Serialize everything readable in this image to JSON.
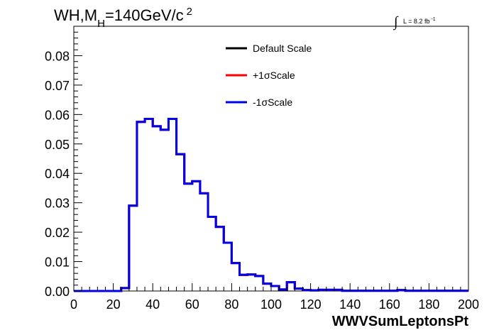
{
  "chart_data": {
    "type": "line",
    "title_parts": {
      "main": "WH,M",
      "sub": "H",
      "rest": "=140GeV/c",
      "sup": "2"
    },
    "luminosity": {
      "integral": "∫",
      "text": "L = 8.2 fb",
      "sup": "-1"
    },
    "xlabel": "WWVSumLeptonsPt",
    "ylabel": "",
    "xlim": [
      0,
      200
    ],
    "ylim": [
      0,
      0.09
    ],
    "xticks": [
      0,
      20,
      40,
      60,
      80,
      100,
      120,
      140,
      160,
      180,
      200
    ],
    "xtick_labels": [
      "0",
      "20",
      "40",
      "60",
      "80",
      "100",
      "120",
      "140",
      "160",
      "180",
      "200"
    ],
    "yticks": [
      0,
      0.01,
      0.02,
      0.03,
      0.04,
      0.05,
      0.06,
      0.07,
      0.08
    ],
    "ytick_labels": [
      "0.00",
      "0.01",
      "0.02",
      "0.03",
      "0.04",
      "0.05",
      "0.06",
      "0.07",
      "0.08"
    ],
    "grid": false,
    "legend_position": "top-center",
    "bin_width": 4,
    "bin_edges_start": 0,
    "series": [
      {
        "name": "Default Scale",
        "color": "#000000",
        "values": [
          0,
          0,
          0,
          0,
          0,
          0,
          0.001,
          0.029,
          0.0575,
          0.0585,
          0.056,
          0.0548,
          0.0585,
          0.0465,
          0.0365,
          0.0373,
          0.0332,
          0.0252,
          0.0218,
          0.0164,
          0.0095,
          0.0055,
          0.0056,
          0.0051,
          0.0025,
          0.0017,
          0.0005,
          0.003,
          0.0008,
          0.0003,
          0.0002,
          0.0004,
          0.0004,
          0.0004,
          0.0001,
          0.0001,
          0.0001,
          0.0001,
          0.0001,
          0.0001,
          0.0001,
          0.0003,
          0.0001,
          0.0001,
          0.0001,
          0.0001,
          0.0001,
          0.0001,
          0.0001,
          0.0001
        ]
      },
      {
        "name": "+1σScale",
        "color": "#ff0000",
        "values": [
          0,
          0,
          0,
          0,
          0,
          0,
          0.001,
          0.029,
          0.0575,
          0.0585,
          0.056,
          0.0548,
          0.0585,
          0.0465,
          0.0365,
          0.0373,
          0.0332,
          0.0252,
          0.0218,
          0.0164,
          0.0095,
          0.0055,
          0.0056,
          0.0051,
          0.0025,
          0.0017,
          0.0005,
          0.003,
          0.0008,
          0.0003,
          0.0002,
          0.0004,
          0.0004,
          0.0004,
          0.0001,
          0.0001,
          0.0001,
          0.0001,
          0.0001,
          0.0001,
          0.0001,
          0.0003,
          0.0001,
          0.0001,
          0.0001,
          0.0001,
          0.0001,
          0.0001,
          0.0001,
          0.0001
        ]
      },
      {
        "name": "-1σScale",
        "color": "#0000ee",
        "values": [
          0,
          0,
          0,
          0,
          0,
          0,
          0.001,
          0.029,
          0.0575,
          0.0585,
          0.056,
          0.0548,
          0.0585,
          0.0465,
          0.0365,
          0.0373,
          0.0332,
          0.0252,
          0.0218,
          0.0164,
          0.0095,
          0.0055,
          0.0056,
          0.0051,
          0.0025,
          0.0017,
          0.0005,
          0.003,
          0.0008,
          0.0003,
          0.0002,
          0.0004,
          0.0004,
          0.0004,
          0.0001,
          0.0001,
          0.0001,
          0.0001,
          0.0001,
          0.0001,
          0.0001,
          0.0003,
          0.0001,
          0.0001,
          0.0001,
          0.0001,
          0.0001,
          0.0001,
          0.0001,
          0.0001
        ]
      }
    ]
  }
}
